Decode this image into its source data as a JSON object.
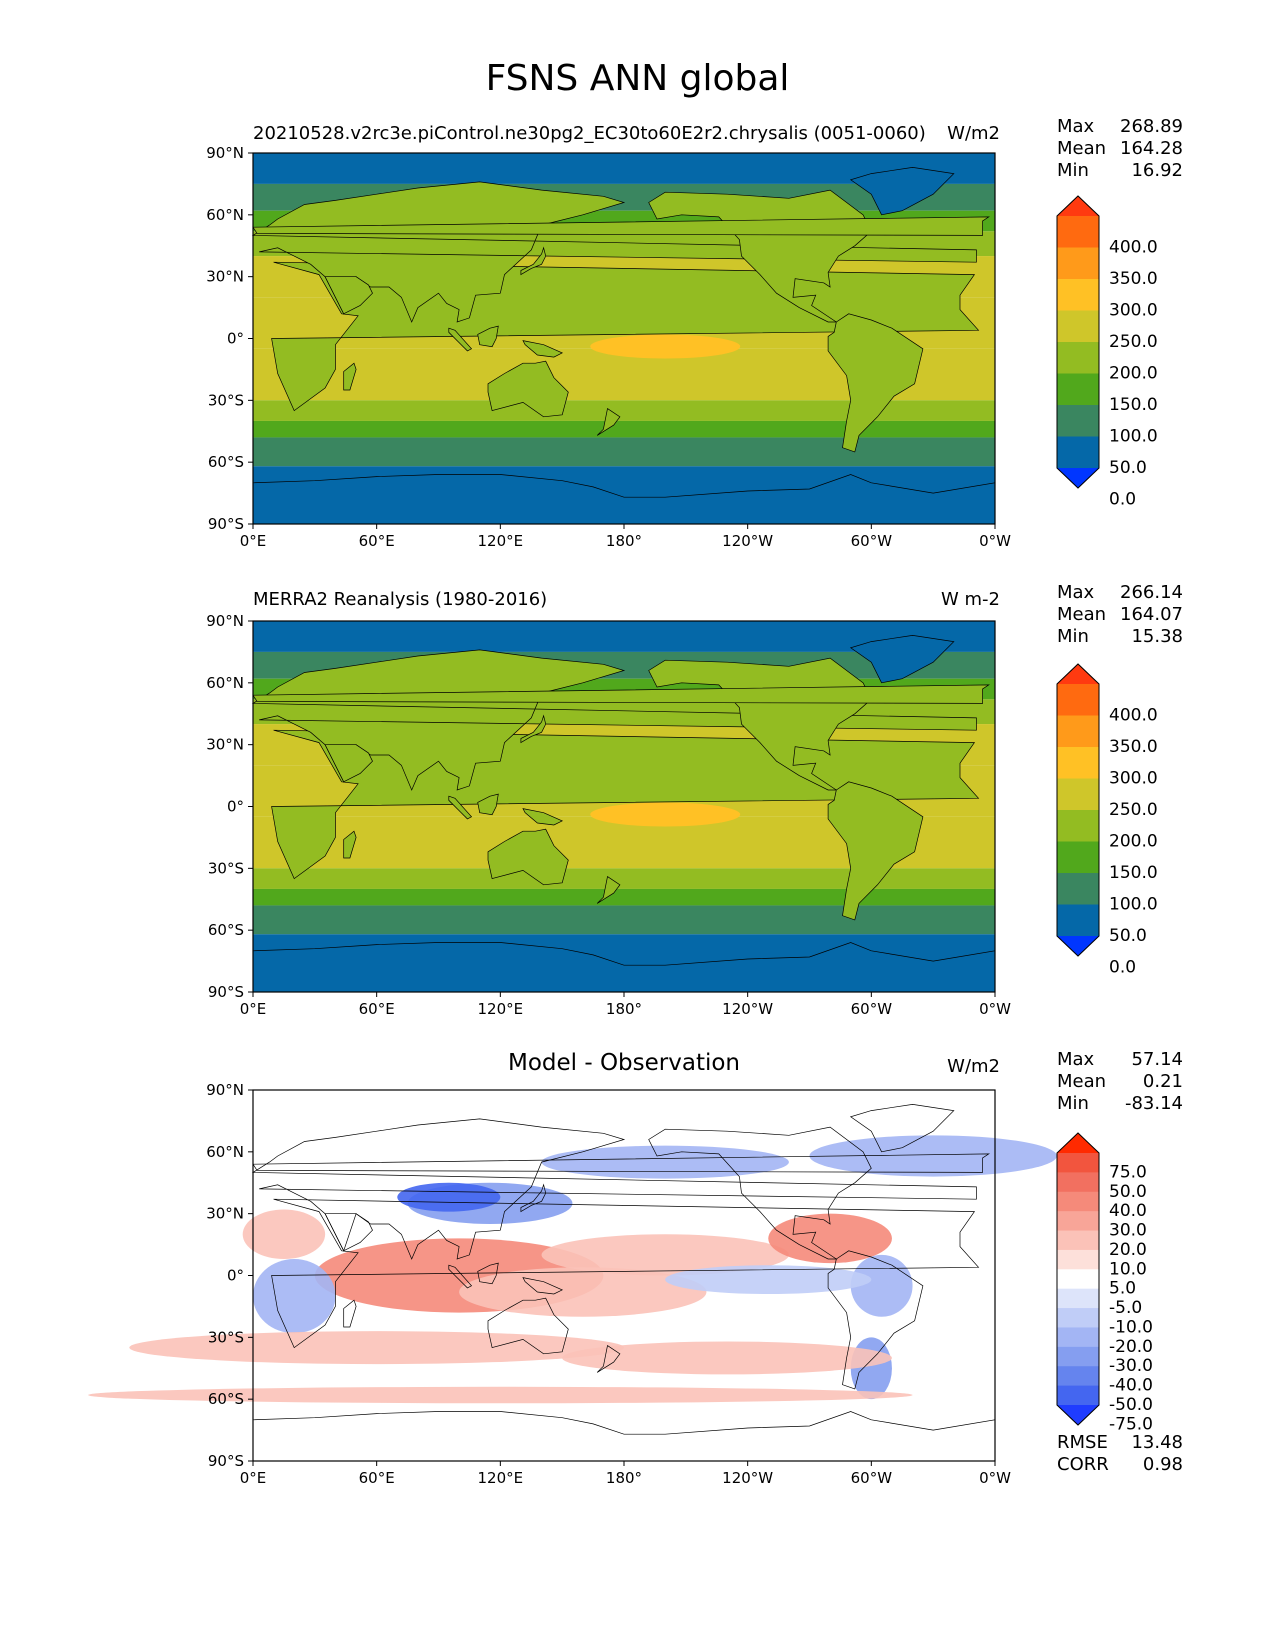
{
  "figure": {
    "title": "FSNS ANN global"
  },
  "chart_data": [
    {
      "type": "heatmap",
      "title": "20210528.v2rc3e.piControl.ne30pg2_EC30to60E2r2.chrysalis (0051-0060)",
      "units": "W/m2",
      "stats": {
        "max": "268.89",
        "mean": "164.28",
        "min": "16.92"
      },
      "colorbar_levels": [
        "400.0",
        "350.0",
        "300.0",
        "250.0",
        "200.0",
        "150.0",
        "100.0",
        "50.0",
        "0.0"
      ],
      "colorbar_colors": [
        "#ff3a10",
        "#ff6a10",
        "#ff9a1a",
        "#ffc125",
        "#cfc62a",
        "#93bc22",
        "#51a81c",
        "#3a8660",
        "#0568a8",
        "#0036ff"
      ],
      "lat_ticks": [
        "90°N",
        "60°N",
        "30°N",
        "0°",
        "30°S",
        "60°S",
        "90°S"
      ],
      "lon_ticks": [
        "0°E",
        "60°E",
        "120°E",
        "180°",
        "120°W",
        "60°W",
        "0°W"
      ]
    },
    {
      "type": "heatmap",
      "title": "MERRA2 Reanalysis (1980-2016)",
      "units": "W m-2",
      "stats": {
        "max": "266.14",
        "mean": "164.07",
        "min": "15.38"
      },
      "colorbar_levels": [
        "400.0",
        "350.0",
        "300.0",
        "250.0",
        "200.0",
        "150.0",
        "100.0",
        "50.0",
        "0.0"
      ],
      "colorbar_colors": [
        "#ff3a10",
        "#ff6a10",
        "#ff9a1a",
        "#ffc125",
        "#cfc62a",
        "#93bc22",
        "#51a81c",
        "#3a8660",
        "#0568a8",
        "#0036ff"
      ],
      "lat_ticks": [
        "90°N",
        "60°N",
        "30°N",
        "0°",
        "30°S",
        "60°S",
        "90°S"
      ],
      "lon_ticks": [
        "0°E",
        "60°E",
        "120°E",
        "180°",
        "120°W",
        "60°W",
        "0°W"
      ]
    },
    {
      "type": "heatmap",
      "title": "Model - Observation",
      "units": "W/m2",
      "stats": {
        "max": "57.14",
        "mean": "0.21",
        "min": "-83.14",
        "rmse": "13.48",
        "corr": "0.98"
      },
      "colorbar_levels": [
        "75.0",
        "50.0",
        "40.0",
        "30.0",
        "20.0",
        "10.0",
        "5.0",
        "-5.0",
        "-10.0",
        "-20.0",
        "-30.0",
        "-40.0",
        "-50.0",
        "-75.0"
      ],
      "colorbar_colors": [
        "#ff2a00",
        "#f2553e",
        "#f27060",
        "#f58a7a",
        "#f8a598",
        "#fbc2b8",
        "#fde0da",
        "#ffffff",
        "#dde4fa",
        "#c0cdf7",
        "#a3b5f4",
        "#859ef0",
        "#6584ee",
        "#4466f0",
        "#1f3cff"
      ],
      "lat_ticks": [
        "90°N",
        "60°N",
        "30°N",
        "0°",
        "30°S",
        "60°S",
        "90°S"
      ],
      "lon_ticks": [
        "0°E",
        "60°E",
        "120°E",
        "180°",
        "120°W",
        "60°W",
        "0°W"
      ]
    }
  ],
  "stat_labels": {
    "max": "Max",
    "mean": "Mean",
    "min": "Min",
    "rmse": "RMSE",
    "corr": "CORR"
  }
}
